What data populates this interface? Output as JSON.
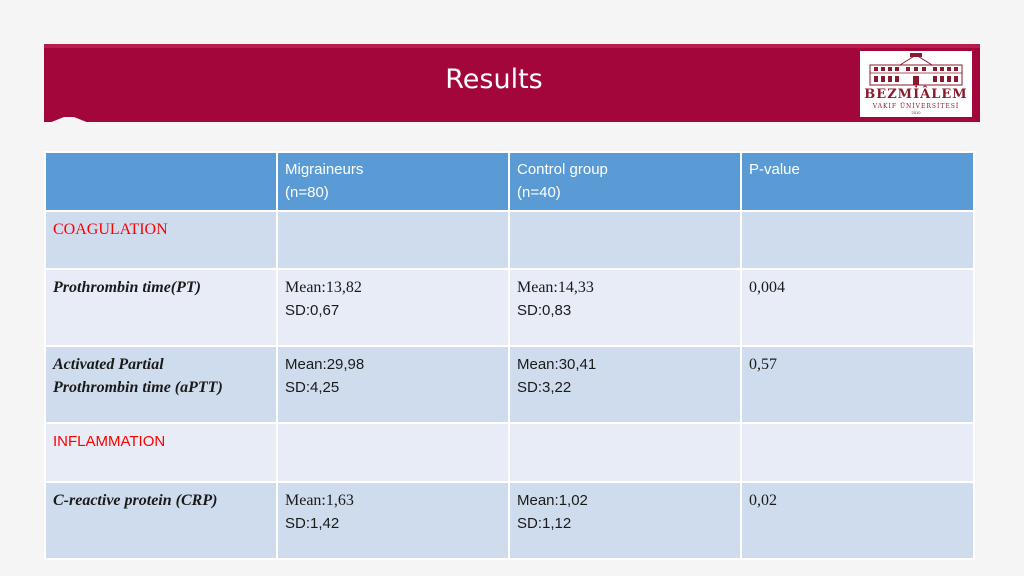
{
  "slide": {
    "title": "Results",
    "colors": {
      "title_band": "#a3063a",
      "header": "#5b9bd5",
      "band_dark": "#cfdcee",
      "band_light": "#e7ecf6",
      "section_label": "#ff0000"
    }
  },
  "logo": {
    "icon": "building-icon",
    "name": "BEZMİÂLEM",
    "sub": "VAKIF ÜNİVERSİTESİ",
    "year": "2010"
  },
  "table": {
    "headers": [
      {
        "line1": "",
        "line2": ""
      },
      {
        "line1": "Migraineurs",
        "line2": "(n=80)"
      },
      {
        "line1": "Control group",
        "line2": "(n=40)"
      },
      {
        "line1": "P-value",
        "line2": ""
      }
    ],
    "sections": {
      "coagulation": "COAGULATION",
      "inflammation": "INFLAMMATION"
    },
    "rows": {
      "pt": {
        "label": "Prothrombin time(PT)",
        "mig_mean": "Mean:13,82",
        "mig_sd": "SD:0,67",
        "ctl_mean": "Mean:14,33",
        "ctl_sd": "SD:0,83",
        "p": "0,004"
      },
      "aptt": {
        "label1": "Activated Partial",
        "label2": "Prothrombin time (aPTT)",
        "mig_mean": "Mean:29,98",
        "mig_sd": "SD:4,25",
        "ctl_mean": "Mean:30,41",
        "ctl_sd": "SD:3,22",
        "p": "0,57"
      },
      "crp": {
        "label": "C-reactive protein (CRP)",
        "mig_mean": "Mean:1,63",
        "mig_sd": "SD:1,42",
        "ctl_mean": "Mean:1,02",
        "ctl_sd": "SD:1,12",
        "p": "0,02"
      }
    }
  }
}
